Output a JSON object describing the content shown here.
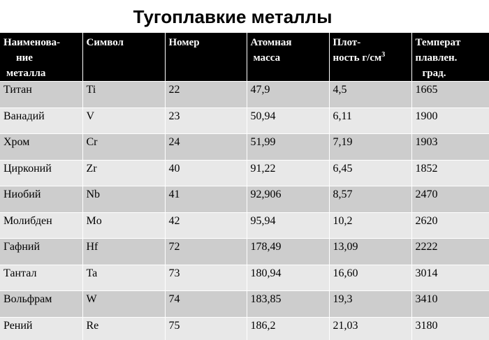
{
  "title": "Тугоплавкие металлы",
  "headers": [
    {
      "lines": [
        "Наименова-",
        "   ние",
        " металла"
      ]
    },
    {
      "lines": [
        "Символ"
      ]
    },
    {
      "lines": [
        "Номер"
      ]
    },
    {
      "lines": [
        "Атомная",
        " масса"
      ]
    },
    {
      "lines": [
        "Плот-",
        "ность г/см"
      ],
      "sup": "3"
    },
    {
      "lines": [
        "Темперaт",
        "плавлен.",
        "    град."
      ]
    }
  ],
  "rows": [
    [
      "Титан",
      "Ti",
      "22",
      "47,9",
      "4,5",
      "1665"
    ],
    [
      "Ванадий",
      "V",
      "23",
      "50,94",
      "6,11",
      "1900"
    ],
    [
      "Хром",
      "Cr",
      "24",
      "51,99",
      "7,19",
      "1903"
    ],
    [
      "Цирконий",
      "Zr",
      "40",
      "91,22",
      "6,45",
      "1852"
    ],
    [
      "Ниобий",
      "Nb",
      "41",
      "92,906",
      "8,57",
      "2470"
    ],
    [
      "Молибден",
      "Mo",
      "42",
      "95,94",
      "10,2",
      "2620"
    ],
    [
      "Гафний",
      "Hf",
      "72",
      "178,49",
      "13,09",
      "2222"
    ],
    [
      "Тантал",
      "Ta",
      "73",
      "180,94",
      "16,60",
      "3014"
    ],
    [
      "Вольфрам",
      "W",
      "74",
      "183,85",
      "19,3",
      "3410"
    ],
    [
      "Рений",
      "Re",
      "75",
      "186,2",
      "21,03",
      "3180"
    ]
  ]
}
